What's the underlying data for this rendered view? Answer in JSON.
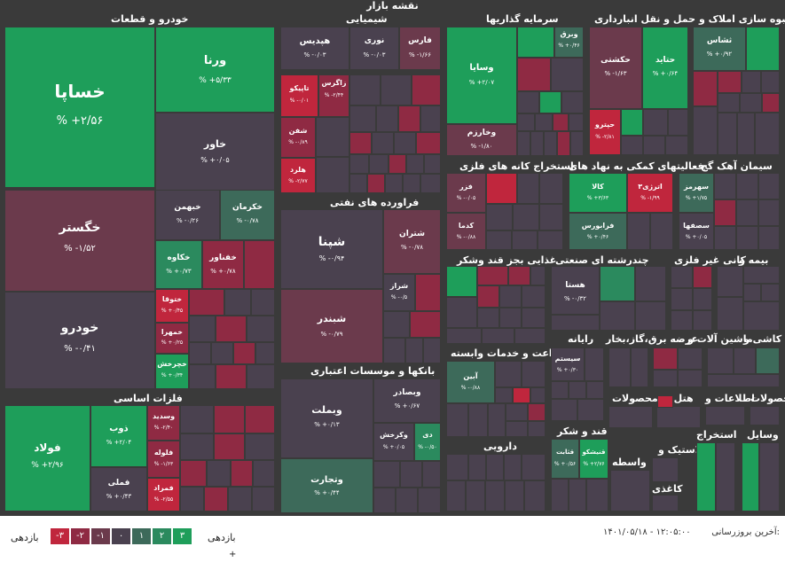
{
  "header": {
    "title": "نقشه بازار"
  },
  "colors": {
    "up3": "#1e9e5a",
    "up2": "#2b8a5e",
    "up1": "#3d6a5a",
    "zero": "#4a414f",
    "down1": "#6b3a4c",
    "down2": "#8f2a43",
    "down3": "#c0263d",
    "bg": "#3a3a3a"
  },
  "sectors": [
    {
      "label": "خودرو و قطعات"
    },
    {
      "label": "شیمیایی"
    },
    {
      "label": "سرمایه گذاریها"
    },
    {
      "label": "حمل و نقل انبارداری"
    },
    {
      "label": "انبوه سازی املاک و"
    },
    {
      "label": "فراورده های نفتی"
    },
    {
      "label": "استخراج کانه های فلزی"
    },
    {
      "label": "فعالیتهای کمکی به نهاد های"
    },
    {
      "label": "سیمان آهک گچ"
    },
    {
      "label": "غذایی بجز قند وشکر"
    },
    {
      "label": "چندرشته ای صنعتی"
    },
    {
      "label": "کانی غیر فلزی"
    },
    {
      "label": "بیمه و"
    },
    {
      "label": "فلزات اساسی"
    },
    {
      "label": "بانکها و موسسات اعتباری"
    },
    {
      "label": "رایانه"
    },
    {
      "label": "ماشین آلات و"
    },
    {
      "label": "عرضه برق،گاز،بخار"
    },
    {
      "label": "کاشی و"
    },
    {
      "label": "زراعت و خدمات وابسته"
    },
    {
      "label": "محصولات"
    },
    {
      "label": "هتل و"
    },
    {
      "label": "اطلاعات و"
    },
    {
      "label": "محصولات"
    },
    {
      "label": "دارویی"
    },
    {
      "label": "قند و شکر"
    },
    {
      "label": "واسطه"
    },
    {
      "label": "لاستیک و"
    },
    {
      "label": "استخراج"
    },
    {
      "label": "وسایل"
    },
    {
      "label": "کاغذی"
    }
  ],
  "tiles": [
    {
      "name": "خساپا",
      "change": "% +۲/۵۶"
    },
    {
      "name": "ورنا",
      "change": "% +۵/۳۳"
    },
    {
      "name": "خاور",
      "change": "% +۰/۰۵"
    },
    {
      "name": "خگستر",
      "change": "% -۱/۵۲"
    },
    {
      "name": "خبهمن",
      "change": "% -۰/۲۶"
    },
    {
      "name": "خکرمان",
      "change": "% -۰/۷۸"
    },
    {
      "name": "خکاوه",
      "change": "% +۰/۷۳"
    },
    {
      "name": "خفناور",
      "change": "% +۰/۷۸"
    },
    {
      "name": "خودرو",
      "change": "% -۰/۴۱"
    },
    {
      "name": "ختوقا",
      "change": "% +۰/۴۵"
    },
    {
      "name": "خمهرا",
      "change": "% +۰/۲۵"
    },
    {
      "name": "خچرخش",
      "change": "% +۰/۳۴"
    },
    {
      "name": "هپدیس",
      "change": "% -۰/۰۳"
    },
    {
      "name": "نوری",
      "change": "% -۰/۰۳"
    },
    {
      "name": "فارس",
      "change": "% -۱/۶۶"
    },
    {
      "name": "تاپیکو",
      "change": "% -۰/۰۱"
    },
    {
      "name": "زاگرس",
      "change": "% -۲/۴۴"
    },
    {
      "name": "شفن",
      "change": "% -۰/۸۹"
    },
    {
      "name": "هلرد",
      "change": "% -۲/۷۷"
    },
    {
      "name": "وسایا",
      "change": "% +۲/۰۷"
    },
    {
      "name": "وخارزم",
      "change": "% -۱/۸۰"
    },
    {
      "name": "وبرق",
      "change": "% +۰/۴۶"
    },
    {
      "name": "حکشتی",
      "change": "% -۱/۶۳"
    },
    {
      "name": "حتاید",
      "change": "% +۰/۶۴"
    },
    {
      "name": "حپترو",
      "change": "% -۲/۸۱"
    },
    {
      "name": "ثشاس",
      "change": "% +۰/۹۲"
    },
    {
      "name": "شپنا",
      "change": "% -۰/۹۴"
    },
    {
      "name": "شتران",
      "change": "% -۰/۷۸"
    },
    {
      "name": "شراز",
      "change": "% -۰/۵"
    },
    {
      "name": "شبندر",
      "change": "% -۰/۷۹"
    },
    {
      "name": "فزر",
      "change": "% -۰/۰۵"
    },
    {
      "name": "کدما",
      "change": "% -۰/۸۸"
    },
    {
      "name": "کالا",
      "change": "% +۳/۶۳"
    },
    {
      "name": "اترژی۳",
      "change": "% -۱/۹۹"
    },
    {
      "name": "فرابورس",
      "change": "% +۰/۴۶"
    },
    {
      "name": "سهرمز",
      "change": "% +۱/۷۵"
    },
    {
      "name": "سصفها",
      "change": "% +۰/۰۵"
    },
    {
      "name": "هستا",
      "change": "% -۰/۳۲"
    },
    {
      "name": "فولاد",
      "change": "% +۲/۹۶"
    },
    {
      "name": "ذوب",
      "change": "% +۲/۰۴"
    },
    {
      "name": "وسدید",
      "change": "% -۲/۴۰"
    },
    {
      "name": "فلوله",
      "change": "% -۱/۶۳"
    },
    {
      "name": "فملی",
      "change": "% +۰/۴۳"
    },
    {
      "name": "فمراد",
      "change": "% -۲/۵۵"
    },
    {
      "name": "وبملت",
      "change": "% +۰/۱۳"
    },
    {
      "name": "وبصادر",
      "change": "% +۰/۶۷"
    },
    {
      "name": "وکرخش",
      "change": "% +۰/۰۵"
    },
    {
      "name": "دی",
      "change": "% -۰/۵۰"
    },
    {
      "name": "وتجارت",
      "change": "% +۰/۴۴"
    },
    {
      "name": "سیستم",
      "change": "% +۰/۳۰"
    },
    {
      "name": "آبین",
      "change": "% -۰/۸۸"
    },
    {
      "name": "قثابت",
      "change": "% +۰/۵۶"
    },
    {
      "name": "قنیشکو",
      "change": "% +۲/۷۶"
    }
  ],
  "footer": {
    "updated_label": "آخرین بروزرسانی:",
    "timestamp": "۱۴۰۱/۰۵/۱۸ - ۱۲:۰۵:۰۰",
    "legend_left_label": "بازدهی",
    "legend_right_label": "بازدهی",
    "legend_values": [
      "-۳",
      "-۲",
      "-۱",
      "۰",
      "۱",
      "۲",
      "۳"
    ],
    "plus_mark": "+"
  }
}
